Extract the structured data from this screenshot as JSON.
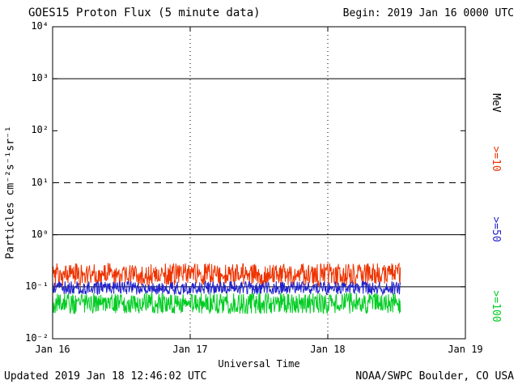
{
  "header": {
    "title": "GOES15 Proton Flux (5 minute data)",
    "begin_label": "Begin: 2019 Jan 16 0000 UTC"
  },
  "footer": {
    "updated": "Updated 2019 Jan 18 12:46:02 UTC",
    "credit": "NOAA/SWPC Boulder, CO USA"
  },
  "axes": {
    "ylabel": "Particles cm⁻²s⁻¹sr⁻¹",
    "xlabel": "Universal Time",
    "unit_label": "MeV"
  },
  "legend": [
    {
      "label": ">=10",
      "color": "#ee3300"
    },
    {
      "label": ">=50",
      "color": "#2222cc"
    },
    {
      "label": ">=100",
      "color": "#00cc22"
    }
  ],
  "chart_data": {
    "type": "line",
    "title": "GOES15 Proton Flux (5 minute data)",
    "xlabel": "Universal Time",
    "ylabel": "Particles cm⁻²s⁻¹sr⁻¹ (log scale)",
    "x_ticks": [
      "Jan 16",
      "Jan 17",
      "Jan 18",
      "Jan 19"
    ],
    "x_range_days": [
      0,
      3
    ],
    "y_log_range": [
      -2,
      4
    ],
    "y_ticks": [
      {
        "label": "10⁴",
        "exp": 4
      },
      {
        "label": "10³",
        "exp": 3
      },
      {
        "label": "10²",
        "exp": 2
      },
      {
        "label": "10¹",
        "exp": 1
      },
      {
        "label": "10⁰",
        "exp": 0
      },
      {
        "label": "10⁻¹",
        "exp": -1
      },
      {
        "label": "10⁻²",
        "exp": -2
      }
    ],
    "day_gridlines": [
      1,
      2
    ],
    "threshold_lines": [
      {
        "value": 1000,
        "style": "solid"
      },
      {
        "value": 10,
        "style": "dashed"
      },
      {
        "value": 1,
        "style": "solid"
      },
      {
        "value": 0.1,
        "style": "solid"
      }
    ],
    "sample_interval_minutes": 5,
    "data_end_day": 2.53,
    "grid": "off",
    "legend_position": "right-vertical",
    "series": [
      {
        "name": ">=10 MeV",
        "color": "#ee3300",
        "baseline_flux": 0.17,
        "log10_noise": 0.22
      },
      {
        "name": ">=50 MeV",
        "color": "#2222cc",
        "baseline_flux": 0.095,
        "log10_noise": 0.13
      },
      {
        "name": ">=100 MeV",
        "color": "#00cc22",
        "baseline_flux": 0.048,
        "log10_noise": 0.2
      }
    ],
    "seed": 20190116
  }
}
